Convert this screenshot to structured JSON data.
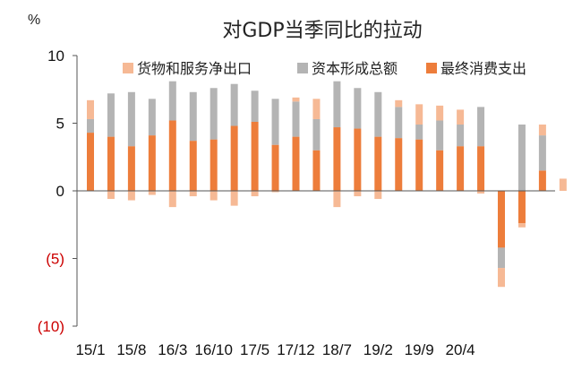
{
  "chart_data": {
    "type": "bar",
    "stacked": true,
    "title": "对GDP当季同比的拉动",
    "ylabel": "%",
    "ylim": [
      -10,
      10
    ],
    "yticks": [
      10,
      5,
      0,
      -5,
      -10
    ],
    "ytick_labels": [
      "10",
      "5",
      "0",
      "(5)",
      "(10)"
    ],
    "ytick_colors": [
      "#111111",
      "#111111",
      "#111111",
      "#cc0000",
      "#cc0000"
    ],
    "x_tick_labels": [
      "15/1",
      "15/8",
      "16/3",
      "16/10",
      "17/5",
      "17/12",
      "18/7",
      "19/2",
      "19/9",
      "20/4"
    ],
    "x_tick_positions": [
      0,
      2,
      4,
      6,
      8,
      10,
      12,
      14,
      16,
      18
    ],
    "legend_position": "top",
    "series": [
      {
        "name": "货物和服务净出口",
        "color": "#f6b995",
        "values": [
          1.4,
          -0.6,
          -0.7,
          -0.3,
          -1.2,
          -0.4,
          -0.7,
          -1.1,
          -0.4,
          -0.1,
          0.3,
          1.5,
          -1.2,
          -0.4,
          -0.6,
          0.5,
          1.5,
          1.1,
          1.1,
          -0.2,
          -1.4,
          -0.3,
          0.8,
          0.9
        ]
      },
      {
        "name": "资本形成总额",
        "color": "#b4b4b4",
        "values": [
          1.0,
          3.2,
          4.0,
          2.7,
          2.9,
          3.6,
          3.8,
          3.1,
          2.3,
          3.4,
          2.6,
          2.3,
          3.4,
          3.0,
          3.3,
          2.3,
          1.1,
          2.2,
          1.6,
          2.9,
          -1.5,
          4.9,
          2.6,
          0.0
        ]
      },
      {
        "name": "最终消费支出",
        "color": "#ed7d3b",
        "values": [
          4.3,
          4.0,
          3.3,
          4.1,
          5.2,
          3.7,
          3.8,
          4.8,
          5.1,
          3.4,
          4.0,
          3.0,
          4.7,
          4.6,
          4.0,
          3.9,
          3.8,
          3.0,
          3.3,
          3.3,
          -4.2,
          -2.4,
          1.5,
          0.0
        ]
      }
    ]
  }
}
